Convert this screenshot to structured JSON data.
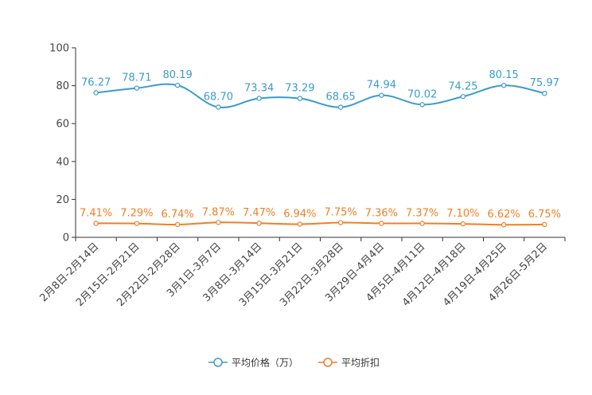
{
  "chart_data": {
    "type": "line",
    "title": "",
    "xlabel": "",
    "ylabel": "",
    "ylim": [
      0,
      100
    ],
    "yticks": [
      0,
      20,
      40,
      60,
      80,
      100
    ],
    "categories": [
      "2月8日-2月14日",
      "2月15日-2月21日",
      "2月22日-2月28日",
      "3月1日-3月7日",
      "3月8日-3月14日",
      "3月15日-3月21日",
      "3月22日-3月28日",
      "3月29日-4月4日",
      "4月5日-4月11日",
      "4月12日-4月18日",
      "4月19日-4月25日",
      "4月26日-5月2日"
    ],
    "series": [
      {
        "name": "平均价格（万）",
        "color": "#3a9bd0",
        "values": [
          76.27,
          78.71,
          80.19,
          68.7,
          73.34,
          73.29,
          68.65,
          74.94,
          70.02,
          74.25,
          80.15,
          75.97
        ],
        "labels": [
          "76.27",
          "78.71",
          "80.19",
          "68.70",
          "73.34",
          "73.29",
          "68.65",
          "74.94",
          "70.02",
          "74.25",
          "80.15",
          "75.97"
        ]
      },
      {
        "name": "平均折扣",
        "color": "#f07f24",
        "values": [
          7.41,
          7.29,
          6.74,
          7.87,
          7.47,
          6.94,
          7.75,
          7.36,
          7.37,
          7.1,
          6.62,
          6.75
        ],
        "labels": [
          "7.41%",
          "7.29%",
          "6.74%",
          "7.87%",
          "7.47%",
          "6.94%",
          "7.75%",
          "7.36%",
          "7.37%",
          "7.10%",
          "6.62%",
          "6.75%"
        ]
      }
    ],
    "legend_position": "bottom-center"
  }
}
